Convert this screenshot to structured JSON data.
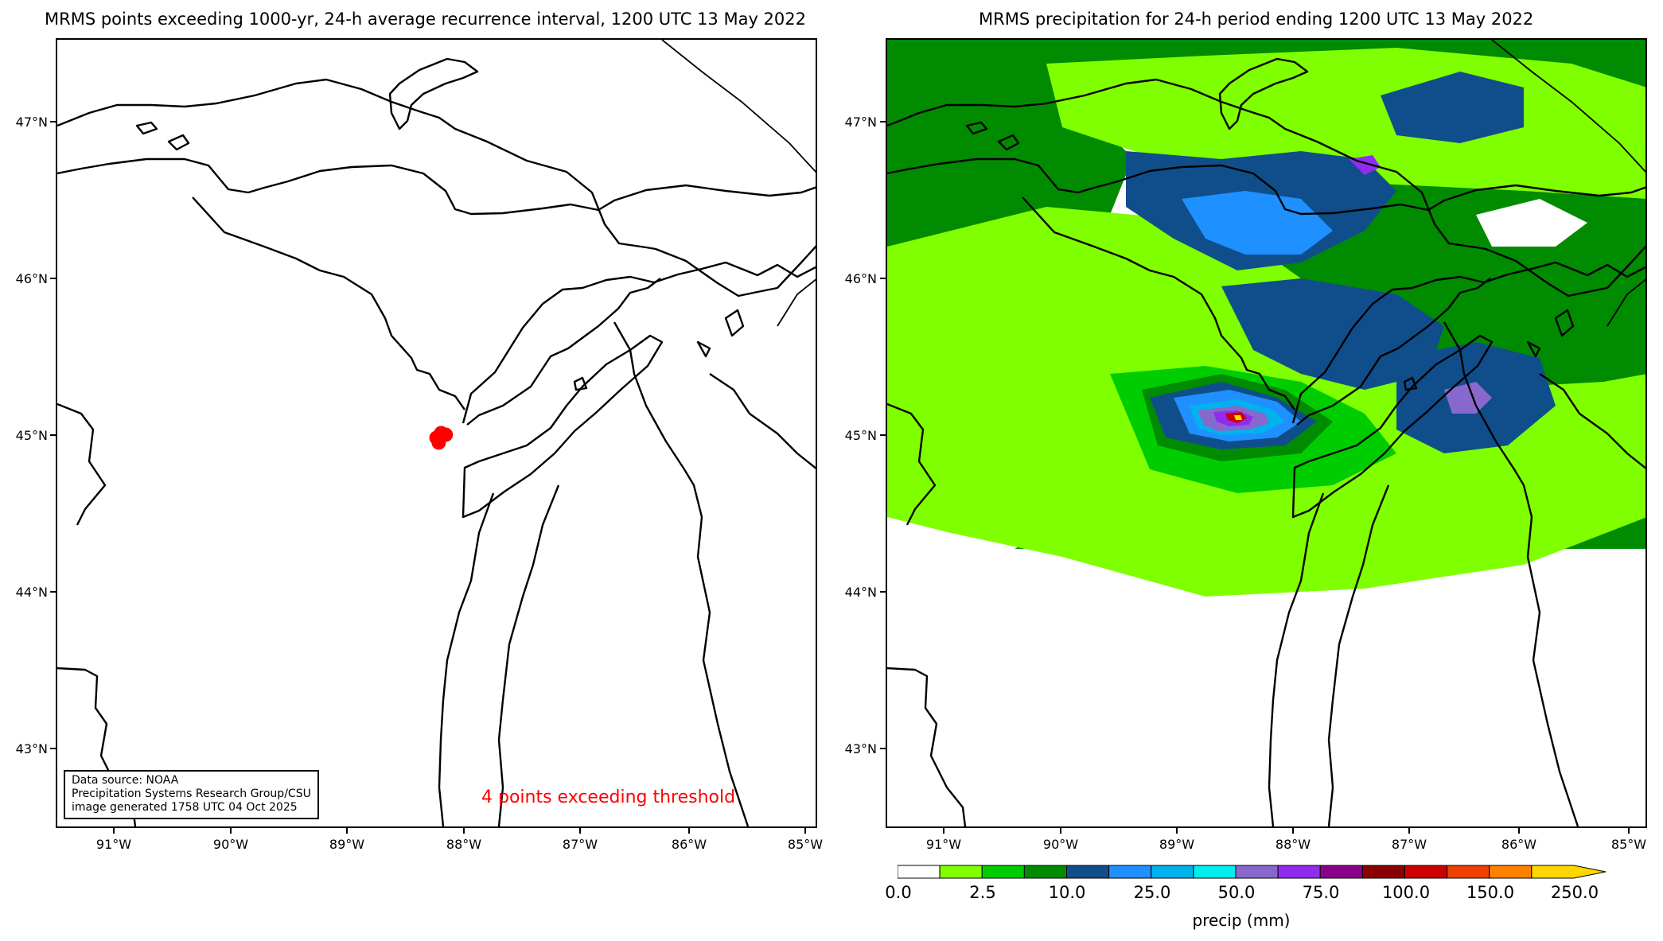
{
  "left_panel": {
    "title": "MRMS points exceeding 1000-yr, 24-h average recurrence interval, 1200 UTC 13 May 2022",
    "source_lines": [
      "Data source: NOAA",
      "Precipitation Systems Research Group/CSU",
      "image generated 1758 UTC 04 Oct 2025"
    ],
    "exceed_text": "4 points exceeding threshold",
    "exceed_color": "#ff0000",
    "points": [
      [
        -88.25,
        44.97
      ],
      [
        -88.21,
        45.0
      ],
      [
        -88.17,
        44.99
      ],
      [
        -88.23,
        44.94
      ]
    ]
  },
  "right_panel": {
    "title": "MRMS precipitation for 24-h period ending 1200 UTC 13 May 2022"
  },
  "lat_labels": [
    "47°N",
    "46°N",
    "45°N",
    "44°N",
    "43°N"
  ],
  "lon_labels": [
    "91°W",
    "90°W",
    "89°W",
    "88°W",
    "87°W",
    "86°W",
    "85°W"
  ],
  "colorbar": {
    "label": "precip (mm)",
    "tick_labels": [
      "0.0",
      "2.5",
      "10.0",
      "25.0",
      "50.0",
      "75.0",
      "100.0",
      "150.0",
      "250.0"
    ],
    "colors": [
      "#ffffff",
      "#7fff00",
      "#00cd00",
      "#008b00",
      "#104e8b",
      "#1e90ff",
      "#00b2ee",
      "#00eeee",
      "#8968cd",
      "#912cee",
      "#8b008b",
      "#8b0000",
      "#cd0000",
      "#ee4000",
      "#ff7f00",
      "#ffd700"
    ]
  }
}
